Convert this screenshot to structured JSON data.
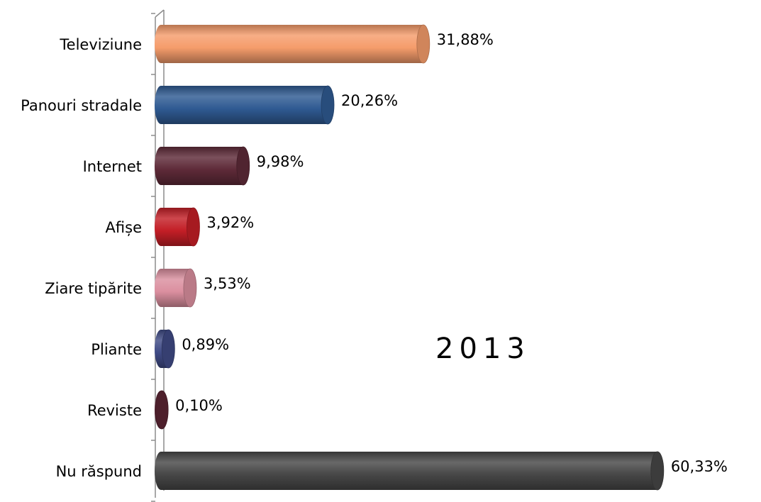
{
  "chart_data": {
    "type": "bar",
    "orientation": "horizontal",
    "categories": [
      "Televiziune",
      "Panouri stradale",
      "Internet",
      "Afișe",
      "Ziare tipărite",
      "Pliante",
      "Reviste",
      "Nu răspund"
    ],
    "values": [
      31.88,
      20.26,
      9.98,
      3.92,
      3.53,
      0.89,
      0.1,
      60.33
    ],
    "value_labels": [
      "31,88%",
      "20,26%",
      "9,98%",
      "3,92%",
      "3,53%",
      "0,89%",
      "0,10%",
      "60,33%"
    ],
    "colors": [
      "#f59c6b",
      "#2f5a92",
      "#5e2a38",
      "#c31e26",
      "#db8f9f",
      "#3f4a85",
      "#5a2533",
      "#474747"
    ],
    "annotation": "2013",
    "xlim": [
      0,
      62
    ],
    "grid": false,
    "legend": "none",
    "style": "3d-cylinder"
  }
}
